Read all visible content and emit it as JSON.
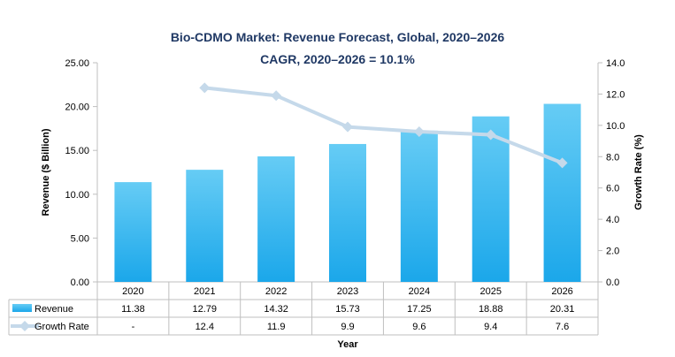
{
  "chart_data": {
    "type": "bar",
    "title": "Bio-CDMO Market: Revenue Forecast, Global, 2020–2026",
    "subtitle": "CAGR, 2020–2026 = 10.1%",
    "xlabel": "Year",
    "ylabel": "Revenue ($ Billion)",
    "y2label": "Growth Rate (%)",
    "categories": [
      "2020",
      "2021",
      "2022",
      "2023",
      "2024",
      "2025",
      "2026"
    ],
    "ylim": [
      0,
      25
    ],
    "y2lim": [
      0,
      14
    ],
    "yticks": [
      "0.00",
      "5.00",
      "10.00",
      "15.00",
      "20.00",
      "25.00"
    ],
    "y2ticks": [
      "0.0",
      "2.0",
      "4.0",
      "6.0",
      "8.0",
      "10.0",
      "12.0",
      "14.0"
    ],
    "series": [
      {
        "name": "Revenue",
        "type": "bar",
        "axis": "left",
        "values": [
          11.38,
          12.79,
          14.32,
          15.73,
          17.25,
          18.88,
          20.31
        ],
        "labels": [
          "11.38",
          "12.79",
          "14.32",
          "15.73",
          "17.25",
          "18.88",
          "20.31"
        ]
      },
      {
        "name": "Growth Rate",
        "type": "line",
        "axis": "right",
        "values": [
          null,
          12.4,
          11.9,
          9.9,
          9.6,
          9.4,
          7.6
        ],
        "labels": [
          "-",
          "12.4",
          "11.9",
          "9.9",
          "9.6",
          "9.4",
          "7.6"
        ]
      }
    ],
    "colors": {
      "bar_light": "#66ccf5",
      "bar_dark": "#1ba7ea",
      "line": "#c5d9ea",
      "title": "#1f3864",
      "axis": "#bfbfbf",
      "text": "#000000"
    }
  }
}
